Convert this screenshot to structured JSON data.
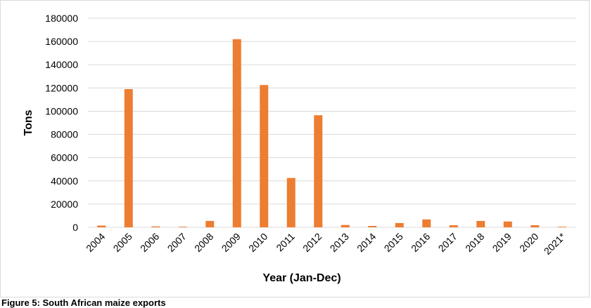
{
  "chart_data": {
    "type": "bar",
    "categories": [
      "2004",
      "2005",
      "2006",
      "2007",
      "2008",
      "2009",
      "2010",
      "2011",
      "2012",
      "2013",
      "2014",
      "2015",
      "2016",
      "2017",
      "2018",
      "2019",
      "2020",
      "2021*"
    ],
    "values": [
      1500,
      119000,
      800,
      500,
      5500,
      162000,
      122500,
      42500,
      96500,
      2000,
      1200,
      3700,
      6800,
      1800,
      5500,
      5000,
      1800,
      500
    ],
    "xlabel": "Year (Jan-Dec)",
    "ylabel": "Tons",
    "ylim": [
      0,
      180000
    ],
    "yticks": [
      0,
      20000,
      40000,
      60000,
      80000,
      100000,
      120000,
      140000,
      160000,
      180000
    ],
    "bar_color": "#ED7D31",
    "grid": true,
    "legend": "none"
  },
  "caption": "Figure 5: South African maize exports"
}
